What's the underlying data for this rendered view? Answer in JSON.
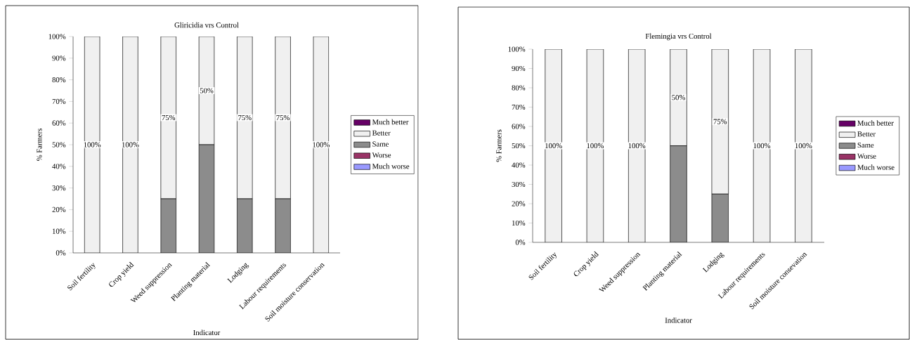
{
  "chart_data": [
    {
      "type": "bar",
      "stacked": true,
      "title": "Gliricidia vrs Control",
      "xlabel": "Indicator",
      "ylabel": "% Farmers",
      "categories": [
        "Soil fertility",
        "Crop yield",
        "Weed suppression",
        "Planting material",
        "Lodging",
        "Labour requirements",
        "Soil moisture conservation"
      ],
      "ylim": [
        0,
        100
      ],
      "yticks": [
        {
          "value": 0,
          "label": "0%"
        },
        {
          "value": 10,
          "label": "10%"
        },
        {
          "value": 20,
          "label": "20%"
        },
        {
          "value": 30,
          "label": "30%"
        },
        {
          "value": 40,
          "label": "40%"
        },
        {
          "value": 50,
          "label": "50%"
        },
        {
          "value": 60,
          "label": "60%"
        },
        {
          "value": 70,
          "label": "70%"
        },
        {
          "value": 80,
          "label": "80%"
        },
        {
          "value": 90,
          "label": "90%"
        },
        {
          "value": 100,
          "label": "100%"
        }
      ],
      "legend": "right",
      "series": [
        {
          "name": "Much worse",
          "color": "#9999ff",
          "values": [
            0,
            0,
            0,
            0,
            0,
            0,
            0
          ]
        },
        {
          "name": "Worse",
          "color": "#993366",
          "values": [
            0,
            0,
            0,
            0,
            0,
            0,
            0
          ]
        },
        {
          "name": "Same",
          "color": "#8c8c8c",
          "values": [
            0,
            0,
            25,
            50,
            25,
            25,
            0
          ]
        },
        {
          "name": "Better",
          "color": "#f0f0f0",
          "values": [
            100,
            100,
            75,
            50,
            75,
            75,
            100
          ],
          "value_labels": [
            "100%",
            "100%",
            "75%",
            "50%",
            "75%",
            "75%",
            "100%"
          ]
        },
        {
          "name": "Much better",
          "color": "#660066",
          "values": [
            0,
            0,
            0,
            0,
            0,
            0,
            0
          ]
        }
      ]
    },
    {
      "type": "bar",
      "stacked": true,
      "title": "Flemingia vrs Control",
      "xlabel": "Indicator",
      "ylabel": "% Farmers",
      "categories": [
        "Soil fertility",
        "Crop yield",
        "Weed suppression",
        "Planting material",
        "Lodging",
        "Labour requirements",
        "Soil moisture consevation"
      ],
      "ylim": [
        0,
        100
      ],
      "yticks": [
        {
          "value": 0,
          "label": "0%"
        },
        {
          "value": 10,
          "label": "10%"
        },
        {
          "value": 20,
          "label": "20%"
        },
        {
          "value": 30,
          "label": "30%"
        },
        {
          "value": 40,
          "label": "40%"
        },
        {
          "value": 50,
          "label": "50%"
        },
        {
          "value": 60,
          "label": "60%"
        },
        {
          "value": 70,
          "label": "70%"
        },
        {
          "value": 80,
          "label": "80%"
        },
        {
          "value": 90,
          "label": "90%"
        },
        {
          "value": 100,
          "label": "100%"
        }
      ],
      "legend": "right",
      "series": [
        {
          "name": "Much worse",
          "color": "#9999ff",
          "values": [
            0,
            0,
            0,
            0,
            0,
            0,
            0
          ]
        },
        {
          "name": "Worse",
          "color": "#993366",
          "values": [
            0,
            0,
            0,
            0,
            0,
            0,
            0
          ]
        },
        {
          "name": "Same",
          "color": "#8c8c8c",
          "values": [
            0,
            0,
            0,
            50,
            25,
            0,
            0
          ]
        },
        {
          "name": "Better",
          "color": "#f0f0f0",
          "values": [
            100,
            100,
            100,
            50,
            75,
            100,
            100
          ],
          "value_labels": [
            "100%",
            "100%",
            "100%",
            "50%",
            "75%",
            "100%",
            "100%"
          ]
        },
        {
          "name": "Much better",
          "color": "#660066",
          "values": [
            0,
            0,
            0,
            0,
            0,
            0,
            0
          ]
        }
      ]
    }
  ]
}
